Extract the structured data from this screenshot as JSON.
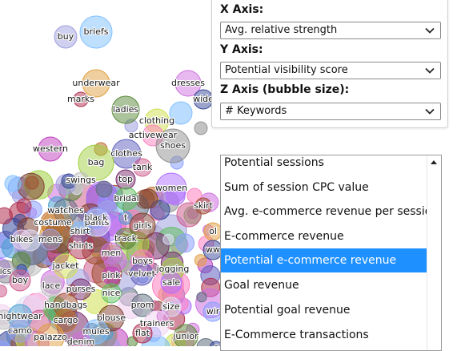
{
  "axis_controls": {
    "x_axis_label": "X Axis:",
    "x_axis_value": "Avg. relative strength",
    "y_axis_label": "Y Axis:",
    "y_axis_value": "Potential visibility score",
    "z_axis_label": "Z Axis (bubble size):",
    "z_axis_value": "# Keywords"
  },
  "metric_dropdown": {
    "options": [
      "Potential sessions",
      "Sum of session CPC value",
      "Avg. e-commerce revenue per session",
      "E-commerce revenue",
      "Potential e-commerce revenue",
      "Goal revenue",
      "Potential goal revenue",
      "E-Commerce transactions"
    ],
    "selected": "Potential e-commerce revenue",
    "selected_color": "#1e90ff"
  },
  "bubble_labels": [
    "buy",
    "briefs",
    "underwear",
    "marks",
    "ladies",
    "dresses",
    "wide",
    "clothing",
    "activewear",
    "shoes",
    "western",
    "clothes",
    "bag",
    "tank",
    "swings",
    "top",
    "women",
    "bridal",
    "skirt",
    "watches",
    "pants",
    "black",
    "t",
    "costume",
    "girls",
    "bikes",
    "mens",
    "shirt",
    "ol",
    "shirts",
    "track",
    "men",
    "ww",
    "jacket",
    "boys",
    "ics",
    "pink",
    "velvet",
    "jogging",
    "boy",
    "lace",
    "purses",
    "sale",
    "nice",
    "handbags",
    "prom",
    "size",
    "wir",
    "nightwear",
    "cargo",
    "blouse",
    "trainers",
    "camo",
    "mules",
    "palazzo",
    "flat",
    "junior",
    "denim",
    "e"
  ],
  "palette": [
    "#7a2b6e",
    "#c040c0",
    "#d070e0",
    "#a0a0e0",
    "#8aa0ff",
    "#b070ff",
    "#6060c0",
    "#3a4a9a",
    "#80c0ff",
    "#4aa0d0",
    "#60c060",
    "#a0d040",
    "#d0e050",
    "#e0a040",
    "#c07030",
    "#a05030",
    "#d06090",
    "#ff80c0",
    "#b03050",
    "#804030",
    "#607080",
    "#c0c0c0",
    "#909090",
    "#5a8a3a",
    "#f0d0f0",
    "#e0e0f8"
  ]
}
